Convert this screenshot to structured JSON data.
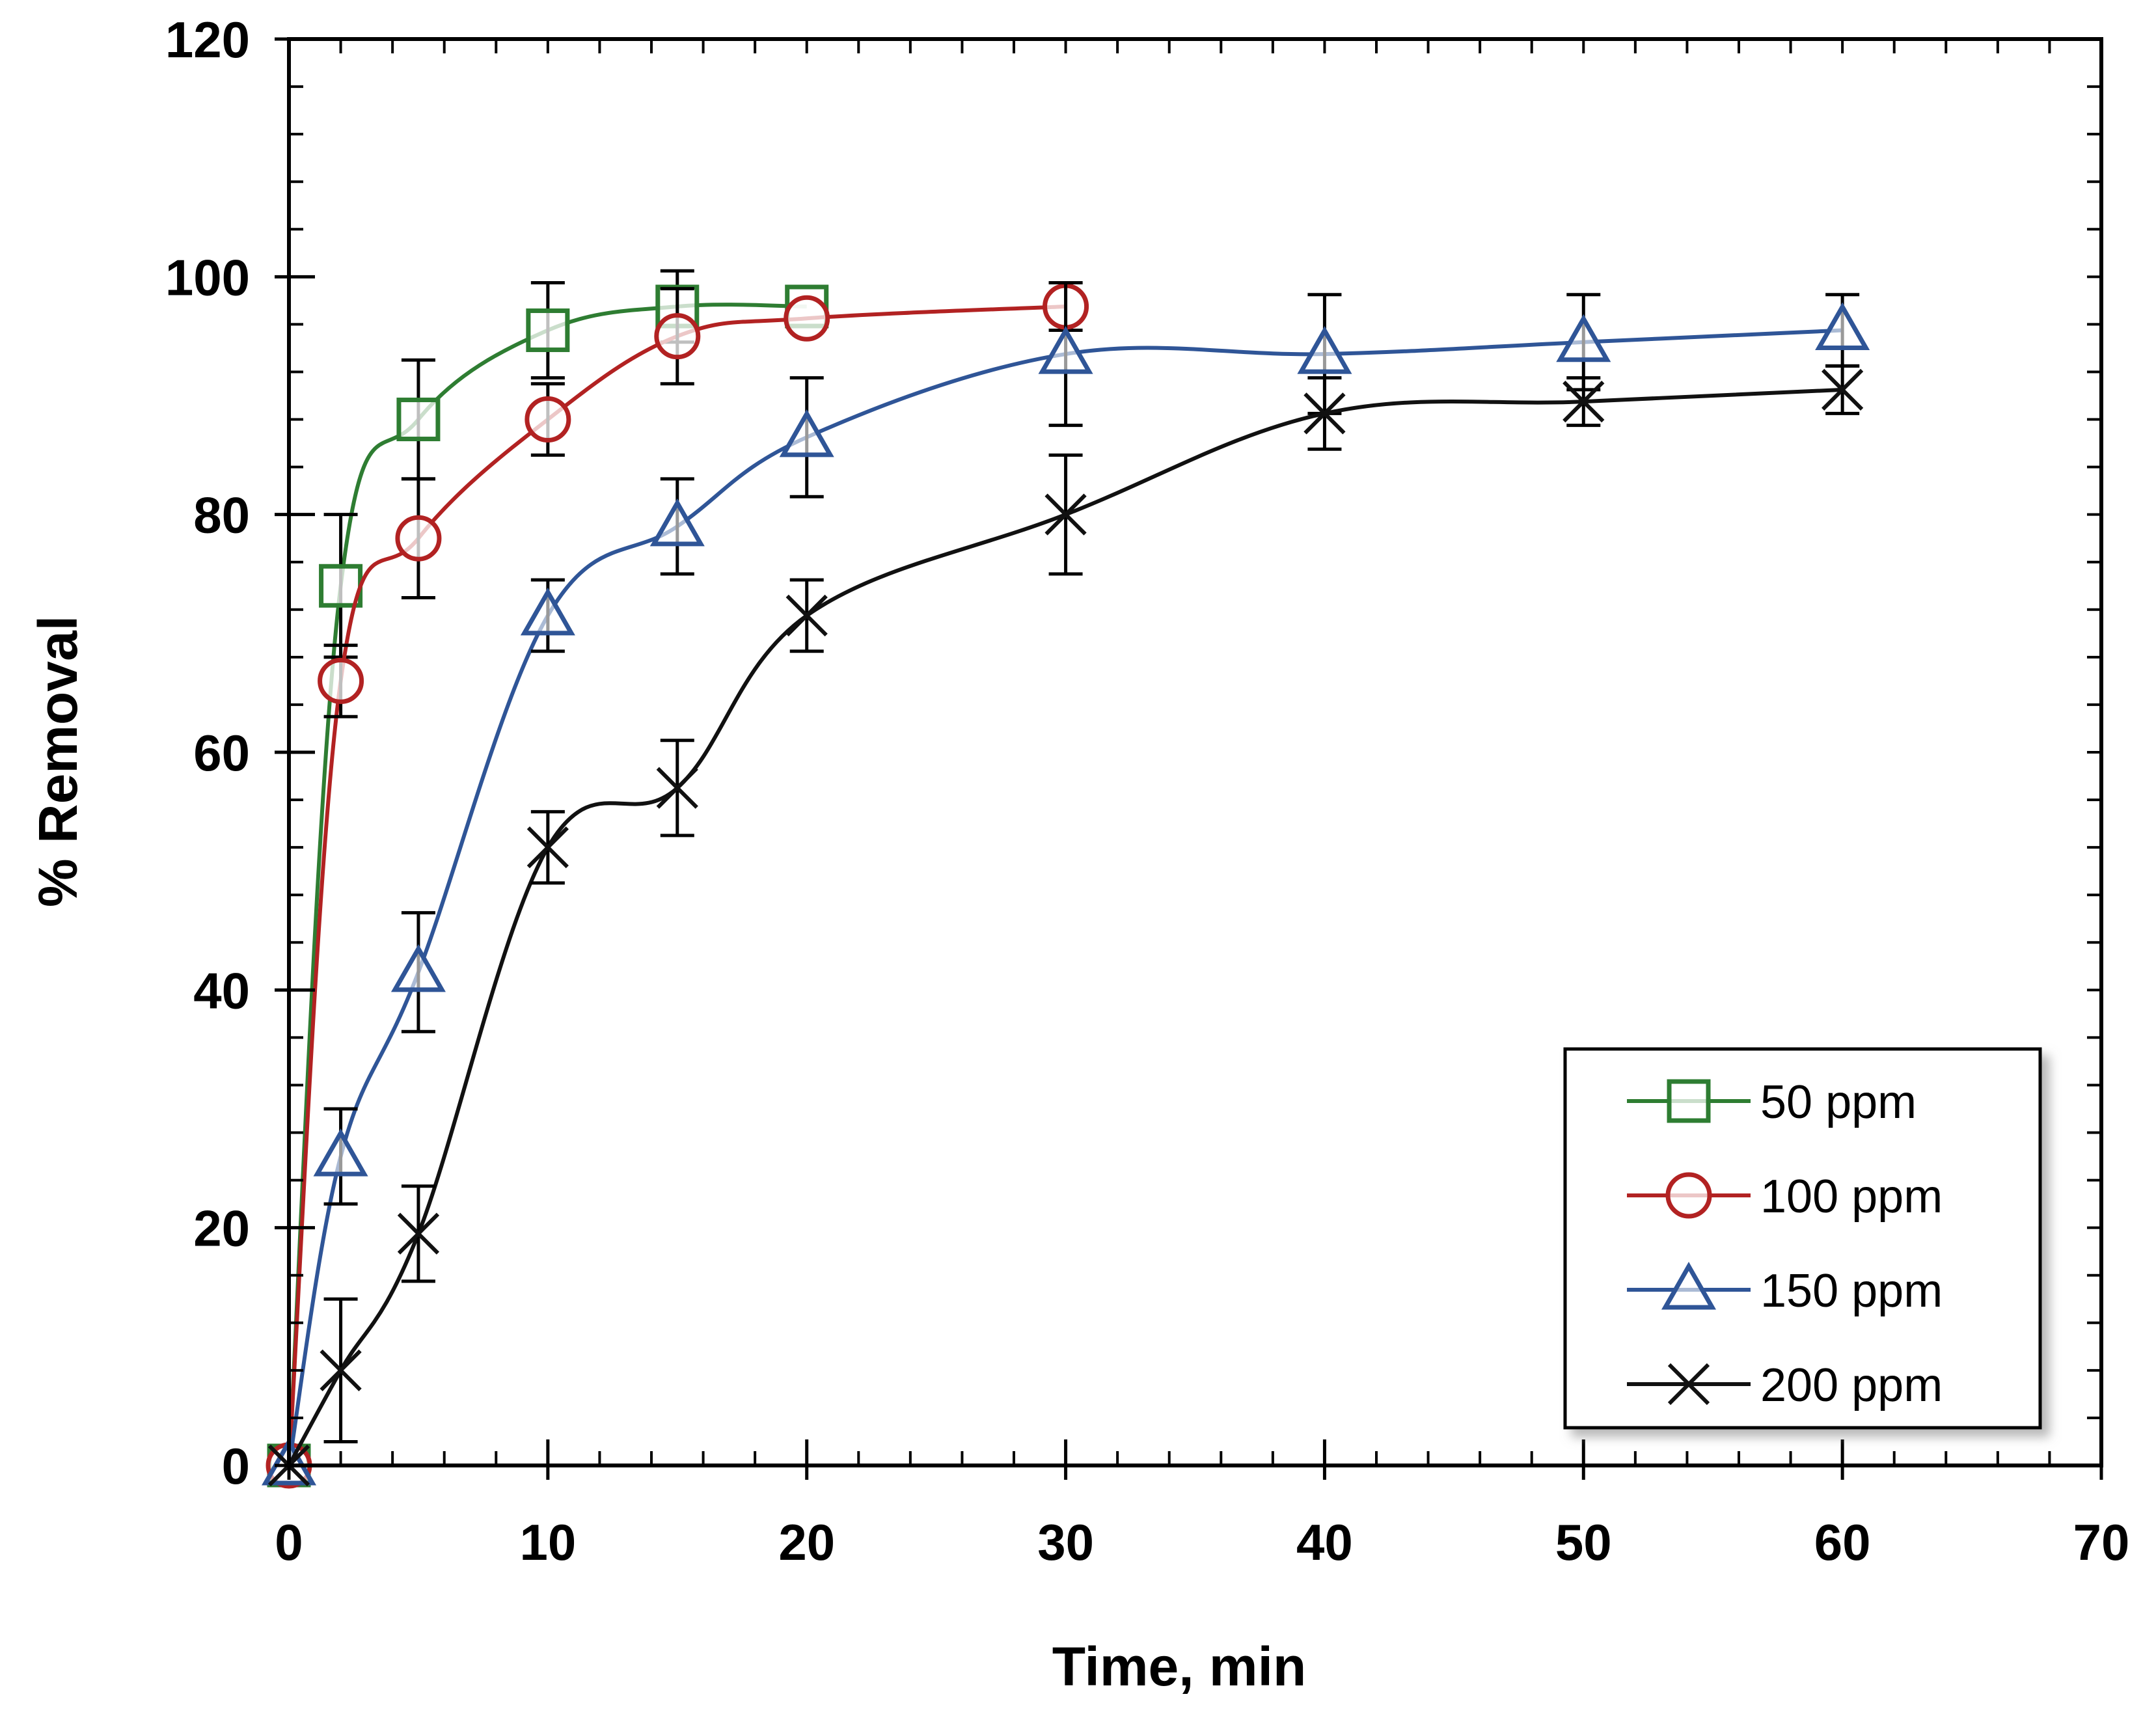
{
  "chart_data": {
    "type": "line",
    "title": "",
    "xlabel": "Time, min",
    "ylabel": "% Removal",
    "xlim": [
      0,
      70
    ],
    "ylim": [
      0,
      120
    ],
    "x_ticks": [
      0,
      10,
      20,
      30,
      40,
      50,
      60,
      70
    ],
    "y_ticks": [
      0,
      20,
      40,
      60,
      80,
      100,
      120
    ],
    "grid": false,
    "legend_position": "bottom-right",
    "series": [
      {
        "name": "50 ppm",
        "color": "#2e7d32",
        "marker": "square",
        "x": [
          0,
          2,
          5,
          10,
          15,
          20
        ],
        "y": [
          0,
          74,
          88,
          95.5,
          97.5,
          97.5
        ],
        "error": [
          0,
          6,
          5,
          4,
          3,
          0
        ]
      },
      {
        "name": "100 ppm",
        "color": "#b22222",
        "marker": "circle",
        "x": [
          0,
          2,
          5,
          10,
          15,
          20,
          30
        ],
        "y": [
          0,
          66,
          78,
          88,
          95,
          96.5,
          97.5
        ],
        "error": [
          0,
          3,
          5,
          3,
          4,
          0,
          2
        ]
      },
      {
        "name": "150 ppm",
        "color": "#2f5597",
        "marker": "triangle",
        "x": [
          0,
          2,
          5,
          10,
          15,
          20,
          30,
          40,
          50,
          60
        ],
        "y": [
          0,
          26,
          41.5,
          71.5,
          79,
          86.5,
          93.5,
          93.5,
          94.5,
          95.5
        ],
        "error": [
          0,
          4,
          5,
          3,
          4,
          5,
          6,
          5,
          4,
          3
        ]
      },
      {
        "name": "200 ppm",
        "color": "#111111",
        "marker": "x",
        "x": [
          0,
          2,
          5,
          10,
          15,
          20,
          30,
          40,
          50,
          60
        ],
        "y": [
          0,
          8,
          19.5,
          52,
          57,
          71.5,
          80,
          88.5,
          89.5,
          90.5
        ],
        "error": [
          0,
          6,
          4,
          3,
          4,
          3,
          5,
          3,
          2,
          2
        ]
      }
    ]
  }
}
